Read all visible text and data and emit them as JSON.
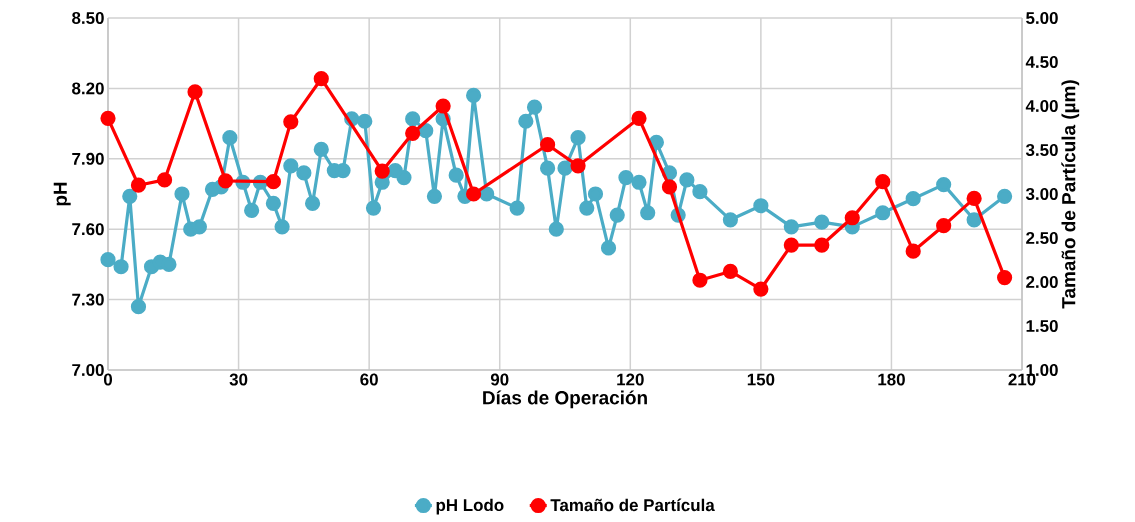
{
  "chart_data": {
    "type": "line",
    "xlabel": "Días de Operación",
    "ylabel": "pH",
    "y2label": "Tamaño de Partícula (µm)",
    "xlim": [
      0,
      210
    ],
    "xticks": [
      0,
      30,
      60,
      90,
      120,
      150,
      180,
      210
    ],
    "ylim": [
      7.0,
      8.5
    ],
    "yticks": [
      {
        "value": 7.0,
        "label": "7.00"
      },
      {
        "value": 7.3,
        "label": "7.30"
      },
      {
        "value": 7.6,
        "label": "7.60"
      },
      {
        "value": 7.9,
        "label": "7.90"
      },
      {
        "value": 8.2,
        "label": "8.20"
      },
      {
        "value": 8.5,
        "label": "8.50"
      }
    ],
    "y2lim": [
      1.0,
      5.0
    ],
    "y2ticks": [
      {
        "value": 1.0,
        "label": "1.00"
      },
      {
        "value": 1.5,
        "label": "1.50"
      },
      {
        "value": 2.0,
        "label": "2.00"
      },
      {
        "value": 2.5,
        "label": "2.50"
      },
      {
        "value": 3.0,
        "label": "3.00"
      },
      {
        "value": 3.5,
        "label": "3.50"
      },
      {
        "value": 4.0,
        "label": "4.00"
      },
      {
        "value": 4.5,
        "label": "4.50"
      },
      {
        "value": 5.0,
        "label": "5.00"
      }
    ],
    "grid": true,
    "legend": "bottom",
    "marker": "circle",
    "line_style": "solid",
    "series": [
      {
        "name": "pH Lodo",
        "color": "#4bacc6",
        "x": [
          0,
          3,
          5,
          7,
          10,
          12,
          14,
          17,
          19,
          21,
          24,
          26,
          28,
          31,
          33,
          35,
          38,
          40,
          42,
          45,
          47,
          49,
          52,
          54,
          56,
          59,
          61,
          63,
          66,
          68,
          70,
          73,
          75,
          77,
          80,
          82,
          84,
          87,
          94,
          96,
          98,
          101,
          103,
          105,
          108,
          110,
          112,
          115,
          117,
          119,
          122,
          124,
          126,
          129,
          131,
          133,
          136,
          143,
          150,
          157,
          164,
          171,
          178,
          185,
          192,
          199,
          206
        ],
        "values": [
          7.47,
          7.44,
          7.74,
          7.27,
          7.44,
          7.46,
          7.45,
          7.75,
          7.6,
          7.61,
          7.77,
          7.78,
          7.99,
          7.8,
          7.68,
          7.8,
          7.71,
          7.61,
          7.87,
          7.84,
          7.71,
          7.94,
          7.85,
          7.85,
          8.07,
          8.06,
          7.69,
          7.8,
          7.85,
          7.82,
          8.07,
          8.02,
          7.74,
          8.07,
          7.83,
          7.74,
          8.17,
          7.75,
          7.69,
          8.06,
          8.12,
          7.86,
          7.6,
          7.86,
          7.99,
          7.69,
          7.75,
          7.52,
          7.66,
          7.82,
          7.8,
          7.67,
          7.97,
          7.84,
          7.66,
          7.81,
          7.76,
          7.64,
          7.7,
          7.61,
          7.63,
          7.61,
          7.67,
          7.73,
          7.79,
          7.64,
          7.74
        ]
      },
      {
        "name": "Tamaño de Partícula",
        "color": "#ff0000",
        "axis": "y2",
        "x": [
          0,
          7,
          13,
          20,
          27,
          38,
          42,
          49,
          63,
          70,
          77,
          84,
          101,
          108,
          122,
          129,
          136,
          143,
          150,
          157,
          164,
          171,
          178,
          185,
          192,
          199,
          206
        ],
        "values": [
          3.86,
          3.1,
          3.16,
          4.16,
          3.15,
          3.14,
          3.82,
          4.31,
          3.26,
          3.69,
          4.0,
          3.0,
          3.56,
          3.32,
          3.86,
          3.08,
          2.02,
          2.12,
          1.92,
          2.42,
          2.42,
          2.73,
          3.14,
          2.35,
          2.64,
          2.95,
          2.05
        ]
      }
    ]
  }
}
